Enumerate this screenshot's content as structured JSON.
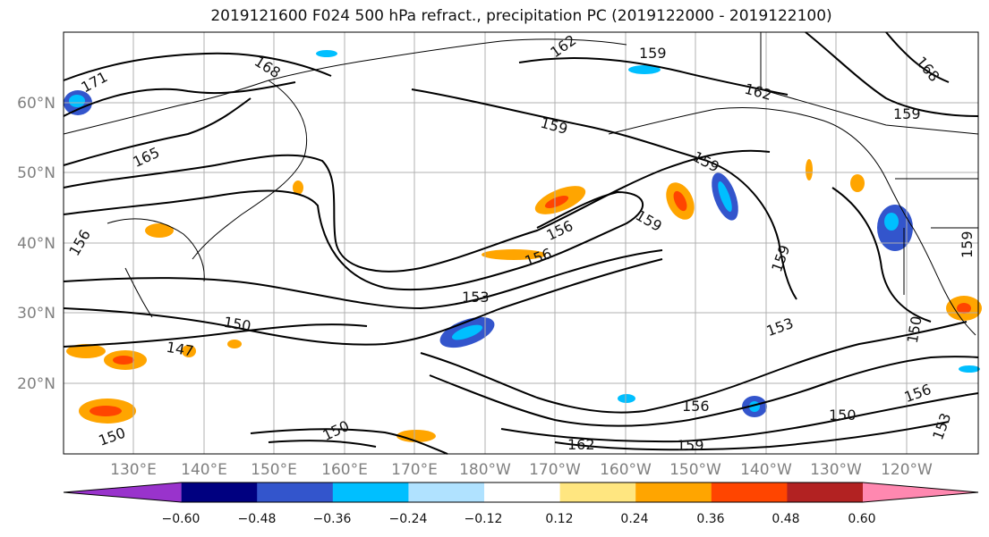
{
  "title": "2019121600 F024 500 hPa refract., precipitation PC (2019122000 - 2019122100)",
  "lon_labels": [
    "130°E",
    "140°E",
    "150°E",
    "160°E",
    "170°E",
    "180°W",
    "170°W",
    "160°W",
    "150°W",
    "140°W",
    "130°W",
    "120°W"
  ],
  "lat_labels": [
    "60°N",
    "50°N",
    "40°N",
    "30°N",
    "20°N"
  ],
  "colorbar": {
    "colors": [
      "#9933cc",
      "#000080",
      "#3355cc",
      "#00bfff",
      "#b0e2ff",
      "#ffffff",
      "#ffe680",
      "#ffa500",
      "#ff4500",
      "#b22222",
      "#ff88b0"
    ],
    "ticks": [
      "−0.60",
      "−0.48",
      "−0.36",
      "−0.24",
      "−0.12",
      "0.12",
      "0.24",
      "0.36",
      "0.48",
      "0.60"
    ]
  },
  "contour_labels": [
    "171",
    "168",
    "165",
    "162",
    "159",
    "159",
    "162",
    "168",
    "159",
    "156",
    "159",
    "156",
    "153",
    "150",
    "147",
    "156",
    "150",
    "153",
    "150",
    "156",
    "159",
    "162",
    "153",
    "150",
    "159",
    "156",
    "150",
    "159",
    "159"
  ]
}
